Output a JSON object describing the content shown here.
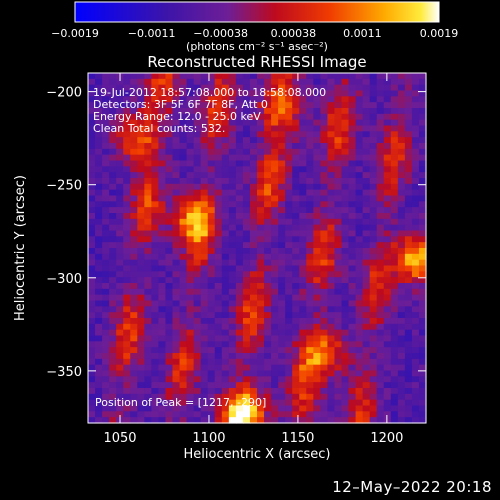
{
  "chart_data": {
    "type": "heatmap",
    "title": "Reconstructed RHESSI Image",
    "xlabel": "Heliocentric X (arcsec)",
    "ylabel": "Heliocentric Y (arcsec)",
    "xlim": [
      1032,
      1222
    ],
    "ylim": [
      -378,
      -190
    ],
    "x_ticks": [
      1050,
      1100,
      1150,
      1200
    ],
    "y_ticks": [
      -200,
      -250,
      -300,
      -350
    ],
    "colorbar": {
      "range": [
        -0.0019,
        0.0019
      ],
      "ticks": [
        -0.0019,
        -0.0011,
        -0.00038,
        0.00038,
        0.0011,
        0.0019
      ],
      "tick_labels": [
        "−0.0019",
        "−0.0011",
        "−0.00038",
        "0.00038",
        "0.0011",
        "0.0019"
      ],
      "units": "(photons cm⁻² s⁻¹ asec⁻²)",
      "colormap": "blue-purple-red-yellow-white"
    },
    "annotations": [
      "19-Jul-2012 18:57:08.000 to 18:58:08.000",
      "Detectors: 3F 5F 6F 7F 8F, Att 0",
      "Energy Range: 12.0 - 25.0 keV",
      "Clean     Total counts: 532.",
      "Position of Peak = [1217, -290]"
    ],
    "peak": {
      "x": 1217,
      "y": -290
    },
    "ridges": [
      {
        "x0": 1062,
        "slope": 0.14,
        "amp": 0.8
      },
      {
        "x0": 1095,
        "slope": 0.14,
        "amp": 0.75
      },
      {
        "x0": 1130,
        "slope": 0.14,
        "amp": 0.85
      },
      {
        "x0": 1165,
        "slope": 0.14,
        "amp": 0.8
      },
      {
        "x0": 1198,
        "slope": 0.14,
        "amp": 0.7
      }
    ],
    "hotspots": [
      {
        "x": 1217,
        "y": -290,
        "amp": 1.0
      },
      {
        "x": 1120,
        "y": -372,
        "amp": 0.95
      },
      {
        "x": 1060,
        "y": -225,
        "amp": 0.7
      },
      {
        "x": 1090,
        "y": -268,
        "amp": 0.7
      },
      {
        "x": 1140,
        "y": -210,
        "amp": 0.65
      },
      {
        "x": 1165,
        "y": -340,
        "amp": 0.7
      }
    ]
  },
  "footer": {
    "date": "12–May–2022 20:18"
  }
}
